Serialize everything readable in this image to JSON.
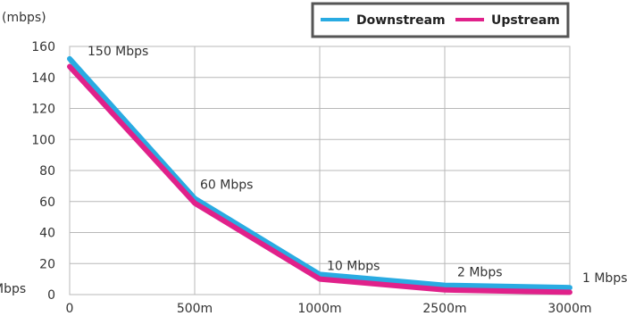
{
  "chart_data": {
    "type": "line",
    "ylabel": "(mbps)",
    "categories": [
      "0",
      "500m",
      "1000m",
      "2500m",
      "3000m"
    ],
    "ylim": [
      0,
      160
    ],
    "yticks": [
      "0",
      "20",
      "40",
      "60",
      "80",
      "100",
      "120",
      "140",
      "160"
    ],
    "grid": true,
    "legend_position": "top-right",
    "series": [
      {
        "name": "Downstream",
        "color": "#29abe2",
        "values": [
          152,
          62,
          13,
          6,
          4.5
        ]
      },
      {
        "name": "Upstream",
        "color": "#e0218a",
        "values": [
          147,
          59,
          10,
          3,
          1.5
        ]
      }
    ],
    "annotations": [
      {
        "index": 0,
        "value": 150,
        "text": "150 Mbps"
      },
      {
        "index": 1,
        "value": 60,
        "text": "60 Mbps"
      },
      {
        "index": 2,
        "value": 10,
        "text": "10 Mbps"
      },
      {
        "index": 3,
        "value": 2,
        "text": "2 Mbps"
      },
      {
        "index": 4,
        "value": 1,
        "text": "1 Mbps"
      }
    ],
    "left_fragment": "Mbps"
  }
}
